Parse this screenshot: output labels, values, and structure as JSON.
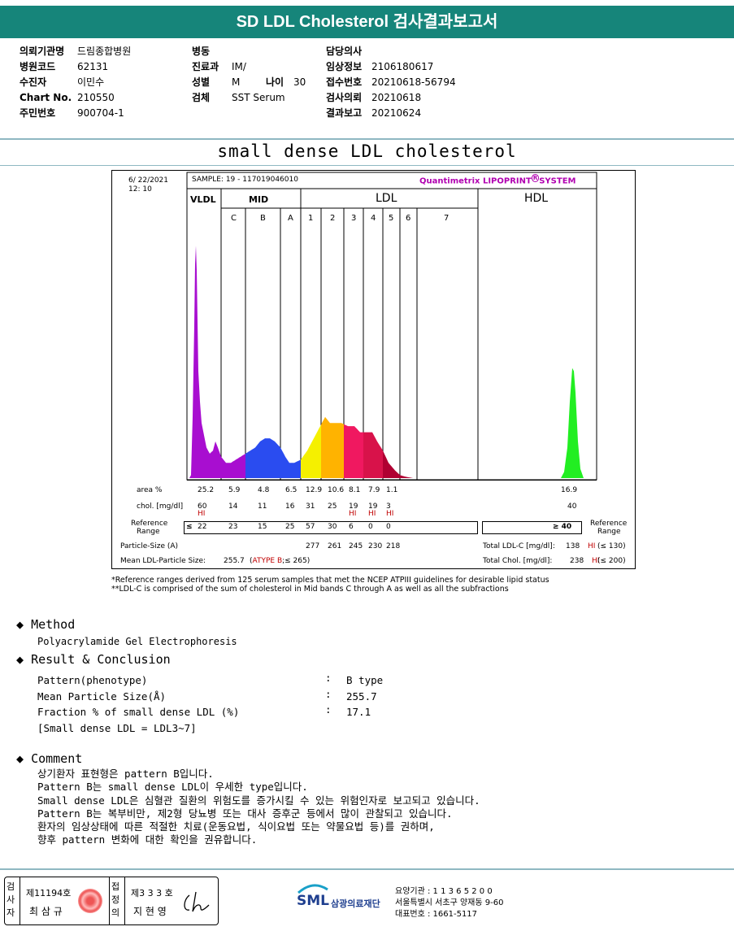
{
  "title": "SD LDL Cholesterol 검사결과보고서",
  "header": {
    "col1": [
      {
        "label": "의뢰기관명",
        "value": "드림종합병원"
      },
      {
        "label": "병원코드",
        "value": "62131"
      },
      {
        "label": "수진자",
        "value": "이민수"
      },
      {
        "label": "Chart No.",
        "value": "210550"
      },
      {
        "label": "주민번호",
        "value": "900704-1"
      }
    ],
    "col2": [
      {
        "label": "병동",
        "value": ""
      },
      {
        "label": "진료과",
        "value": "IM/"
      },
      {
        "label": "성별",
        "value": "M"
      },
      {
        "label": "검체",
        "value": "SST Serum"
      }
    ],
    "age_label": "나이",
    "age_value": "30",
    "col3": [
      {
        "label": "담당의사",
        "value": ""
      },
      {
        "label": "임상정보",
        "value": "2106180617"
      },
      {
        "label": "접수번호",
        "value": "20210618-56794"
      },
      {
        "label": "검사의뢰",
        "value": "20210618"
      },
      {
        "label": "결과보고",
        "value": "20210624"
      }
    ]
  },
  "subtitle": "small dense LDL cholesterol",
  "lipoprint": {
    "date": "6/ 22/2021",
    "time": "12: 10",
    "sample": "SAMPLE:   19 - 117019046010",
    "system": "Quantimetrix LIPOPRINT",
    "system_suffix": "SYSTEM",
    "reg_mark": "R",
    "groups": {
      "vldl": "VLDL",
      "mid": "MID",
      "ldl": "LDL",
      "hdl": "HDL"
    },
    "bands": [
      "C",
      "B",
      "A",
      "1",
      "2",
      "3",
      "4",
      "5",
      "6",
      "7"
    ],
    "row_labels": {
      "area": "area %",
      "chol": "chol. [mg/dl]",
      "ref1": "Reference",
      "ref2": "Range",
      "particle": "Particle-Size (A)",
      "mean": "Mean LDL-Particle Size:"
    },
    "area": [
      "25.2",
      "5.9",
      "4.8",
      "6.5",
      "12.9",
      "10.6",
      "8.1",
      "7.9",
      "1.1"
    ],
    "hdl_area": "16.9",
    "chol": [
      "60",
      "14",
      "11",
      "16",
      "31",
      "25",
      "19",
      "19",
      "3"
    ],
    "hdl_chol": "40",
    "chol_flags": [
      "HI",
      "",
      "",
      "",
      "",
      "",
      "HI",
      "HI",
      "HI"
    ],
    "ref_prefix": "≤",
    "ref": [
      "22",
      "23",
      "15",
      "25",
      "57",
      "30",
      "6",
      "0",
      "0"
    ],
    "hdl_ref": "≥  40",
    "ref_side1": "Reference",
    "ref_side2": "Range",
    "particle": [
      "277",
      "261",
      "245",
      "230",
      "218"
    ],
    "mean_size": "255.7",
    "mean_type": "ATYPE B",
    "mean_type_tail": ";≤ 265)",
    "mean_type_head": "(",
    "total_ldl_label": "Total LDL-C [mg/dl]:",
    "total_ldl_value": "138",
    "total_ldl_flag": "HI",
    "total_ldl_ref": "(≤ 130)",
    "total_chol_label": "Total Chol. [mg/dl]:",
    "total_chol_value": "238",
    "total_chol_flag": "HI",
    "total_chol_ref": "(≤ 200)",
    "colors": {
      "vldl": "#a80ed0",
      "mid": "#2a4cf0",
      "ldl1": "#f5f000",
      "ldl2": "#ffb300",
      "ldl3": "#f01860",
      "ldl4": "#d8124a",
      "ldl5": "#b00032",
      "hdl": "#22ee22"
    }
  },
  "footnote1": "*Reference ranges derived from 125 serum samples that met the NCEP ATPIII guidelines for desirable lipid status",
  "footnote2": "**LDL-C is comprised of the sum of cholesterol in Mid bands C through A as well as all the subfractions",
  "method": {
    "heading": "Method",
    "text": "Polyacrylamide Gel Electrophoresis"
  },
  "result": {
    "heading": "Result & Conclusion",
    "rows": [
      {
        "label": "Pattern(phenotype)",
        "value": "B type"
      },
      {
        "label": "Mean Particle Size(Å)",
        "value": "255.7"
      },
      {
        "label": "Fraction % of small dense LDL (%)",
        "value": "17.1"
      }
    ],
    "note": "[Small dense LDL = LDL3~7]"
  },
  "comment": {
    "heading": "Comment",
    "lines": [
      "상기환자 표현형은 pattern B입니다.",
      "Pattern B는 small dense LDL이 우세한 type입니다.",
      "Small dense LDL은 심혈관 질환의 위험도를 증가시킬 수 있는 위험인자로 보고되고 있습니다.",
      "Pattern B는 복부비만, 제2형 당뇨병 또는 대사 증후군 등에서 많이 관찰되고 있습니다.",
      "환자의 임상상태에 따른 적절한 치료(운동요법, 식이요법 또는 약물요법 등)를 권하며,",
      "향후 pattern 변화에 대한 확인을 권유합니다."
    ]
  },
  "footer": {
    "inspector_v": "검사자",
    "inspector_no": "제11194호",
    "inspector_name": "최 삼 규",
    "approver_v": "접정의",
    "approver_no": "제3 3 3 호",
    "approver_name": "지 현 영",
    "logo_text": "SML",
    "logo_org": "삼광의료재단",
    "addr1": "요양기관 : 1 1 3 6 5 2 0 0",
    "addr2": "서울특별시 서초구 양재동 9-60",
    "addr3": "대표번호 : 1661-5117"
  }
}
